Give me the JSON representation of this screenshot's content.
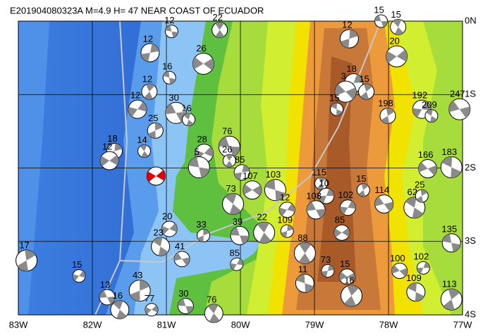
{
  "map": {
    "title": "E201904080323A M=4.9 H= 47 NEAR COAST OF ECUADOR",
    "lon_ticks": [
      {
        "value": -83,
        "label": "83W"
      },
      {
        "value": -82,
        "label": "82W"
      },
      {
        "value": -81,
        "label": "81W"
      },
      {
        "value": -80,
        "label": "80W"
      },
      {
        "value": -79,
        "label": "79W"
      },
      {
        "value": -78,
        "label": "78W"
      },
      {
        "value": -77,
        "label": "77W"
      }
    ],
    "lat_ticks": [
      {
        "value": 0,
        "label": "0N"
      },
      {
        "value": -1,
        "label": "1S"
      },
      {
        "value": -2,
        "label": "2S"
      },
      {
        "value": -3,
        "label": "3S"
      },
      {
        "value": -4,
        "label": "4S"
      }
    ],
    "lonlim": [
      -83,
      -77
    ],
    "latlim": [
      0,
      -4
    ],
    "events": [
      {
        "label": "15",
        "lon": -78.1,
        "lat": 0.0
      },
      {
        "label": "15",
        "lon": -77.87,
        "lat": -0.08
      },
      {
        "label": "12",
        "lon": -78.53,
        "lat": -0.24
      },
      {
        "label": "20",
        "lon": -77.89,
        "lat": -0.48
      },
      {
        "label": "12",
        "lon": -80.93,
        "lat": -0.14
      },
      {
        "label": "22",
        "lon": -80.28,
        "lat": -0.12
      },
      {
        "label": "12",
        "lon": -81.22,
        "lat": -0.43
      },
      {
        "label": "26",
        "lon": -80.5,
        "lat": -0.58
      },
      {
        "label": "16",
        "lon": -80.96,
        "lat": -0.77
      },
      {
        "label": "12",
        "lon": -81.23,
        "lat": -0.96
      },
      {
        "label": "18",
        "lon": -78.47,
        "lat": -0.84
      },
      {
        "label": "3",
        "lon": -78.58,
        "lat": -0.96
      },
      {
        "label": "15",
        "lon": -78.7,
        "lat": -1.2
      },
      {
        "label": "15",
        "lon": -78.3,
        "lat": -0.96
      },
      {
        "label": "192",
        "lon": -77.55,
        "lat": -1.2
      },
      {
        "label": "247",
        "lon": -77.04,
        "lat": -1.2
      },
      {
        "label": "209",
        "lon": -77.42,
        "lat": -1.29
      },
      {
        "label": "198",
        "lon": -78.01,
        "lat": -1.29
      },
      {
        "label": "12",
        "lon": -81.39,
        "lat": -1.2
      },
      {
        "label": "30",
        "lon": -80.87,
        "lat": -1.25
      },
      {
        "label": "16",
        "lon": -80.7,
        "lat": -1.34
      },
      {
        "label": "25",
        "lon": -81.15,
        "lat": -1.49
      },
      {
        "label": "28",
        "lon": -80.49,
        "lat": -1.8
      },
      {
        "label": "76",
        "lon": -80.15,
        "lat": -1.71
      },
      {
        "label": "14",
        "lon": -81.3,
        "lat": -1.77
      },
      {
        "label": "18",
        "lon": -81.7,
        "lat": -1.77
      },
      {
        "label": "12",
        "lon": -81.77,
        "lat": -1.9
      },
      {
        "label": "5",
        "lon": -80.56,
        "lat": -1.99
      },
      {
        "label": "26",
        "lon": -80.15,
        "lat": -1.9
      },
      {
        "label": "85",
        "lon": -79.98,
        "lat": -2.06
      },
      {
        "label": "107",
        "lon": -79.84,
        "lat": -2.3
      },
      {
        "label": "103",
        "lon": -79.53,
        "lat": -2.3
      },
      {
        "label": "115",
        "lon": -78.91,
        "lat": -2.21
      },
      {
        "label": "10",
        "lon": -78.84,
        "lat": -2.38
      },
      {
        "label": "166",
        "lon": -77.47,
        "lat": -2.01
      },
      {
        "label": "183",
        "lon": -77.15,
        "lat": -1.99
      },
      {
        "label": "15",
        "lon": -78.34,
        "lat": -2.3
      },
      {
        "label": "102",
        "lon": -78.55,
        "lat": -2.54
      },
      {
        "label": "114",
        "lon": -78.06,
        "lat": -2.49
      },
      {
        "label": "62",
        "lon": -77.65,
        "lat": -2.54
      },
      {
        "label": "25",
        "lon": -77.55,
        "lat": -2.38
      },
      {
        "label": "12",
        "lon": -79.37,
        "lat": -2.57
      },
      {
        "label": "108",
        "lon": -78.98,
        "lat": -2.57
      },
      {
        "label": "73",
        "lon": -80.1,
        "lat": -2.49
      },
      {
        "label": "33",
        "lon": -80.5,
        "lat": -2.92
      },
      {
        "label": "20",
        "lon": -80.96,
        "lat": -2.83
      },
      {
        "label": "39",
        "lon": -80.01,
        "lat": -2.92
      },
      {
        "label": "22",
        "lon": -79.68,
        "lat": -2.88
      },
      {
        "label": "109",
        "lon": -79.37,
        "lat": -2.86
      },
      {
        "label": "85",
        "lon": -78.63,
        "lat": -2.88
      },
      {
        "label": "135",
        "lon": -77.15,
        "lat": -3.02
      },
      {
        "label": "88",
        "lon": -79.13,
        "lat": -3.16
      },
      {
        "label": "73",
        "lon": -78.82,
        "lat": -3.4
      },
      {
        "label": "15",
        "lon": -78.56,
        "lat": -3.48
      },
      {
        "label": "11",
        "lon": -79.13,
        "lat": -3.57
      },
      {
        "label": "16",
        "lon": -78.5,
        "lat": -3.74
      },
      {
        "label": "102",
        "lon": -77.53,
        "lat": -3.36
      },
      {
        "label": "100",
        "lon": -77.85,
        "lat": -3.4
      },
      {
        "label": "109",
        "lon": -77.63,
        "lat": -3.69
      },
      {
        "label": "113",
        "lon": -77.15,
        "lat": -3.79
      },
      {
        "label": "85",
        "lon": -80.05,
        "lat": -3.31
      },
      {
        "label": "41",
        "lon": -80.79,
        "lat": -3.24
      },
      {
        "label": "23",
        "lon": -81.08,
        "lat": -3.07
      },
      {
        "label": "17",
        "lon": -82.89,
        "lat": -3.26
      },
      {
        "label": "15",
        "lon": -82.18,
        "lat": -3.47
      },
      {
        "label": "13",
        "lon": -81.8,
        "lat": -3.76
      },
      {
        "label": "16",
        "lon": -81.63,
        "lat": -3.93
      },
      {
        "label": "43",
        "lon": -81.36,
        "lat": -3.67
      },
      {
        "label": "77",
        "lon": -81.2,
        "lat": -3.93
      },
      {
        "label": "30",
        "lon": -80.74,
        "lat": -3.88
      },
      {
        "label": "76",
        "lon": -80.36,
        "lat": -3.98
      }
    ],
    "main_event": {
      "lon": -81.14,
      "lat": -2.11,
      "color": "#e00000"
    }
  }
}
